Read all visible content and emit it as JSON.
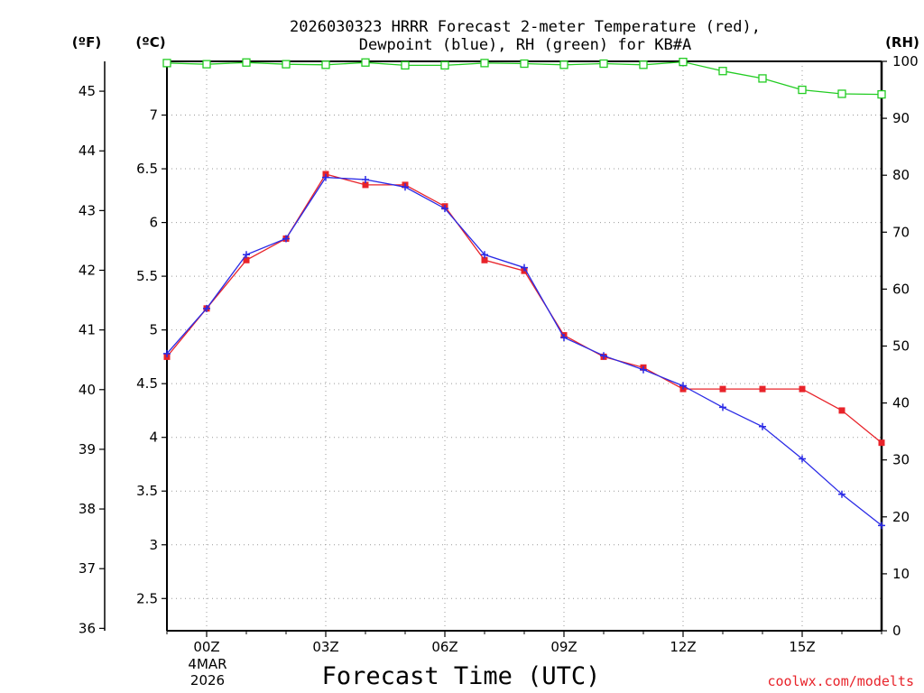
{
  "chart_data": {
    "type": "line",
    "title_line1": "2026030323 HRRR Forecast 2-meter Temperature (red),",
    "title_line2": "Dewpoint (blue), RH (green) for KB#A",
    "xlabel": "Forecast Time (UTC)",
    "credit": "coolwx.com/modelts",
    "units": {
      "left_f": "(ºF)",
      "left_c": "(ºC)",
      "right": "(RH)"
    },
    "x_range": [
      -1,
      17
    ],
    "x_ticks": [
      {
        "x": 0,
        "label": "00Z"
      },
      {
        "x": 3,
        "label": "03Z"
      },
      {
        "x": 6,
        "label": "06Z"
      },
      {
        "x": 9,
        "label": "09Z"
      },
      {
        "x": 12,
        "label": "12Z"
      },
      {
        "x": 15,
        "label": "15Z"
      }
    ],
    "date_label_1": "4MAR",
    "date_label_2": "2026",
    "c_range": [
      2.2,
      7.5
    ],
    "c_ticks": [
      "2.5",
      "3",
      "3.5",
      "4",
      "4.5",
      "5",
      "5.5",
      "6",
      "6.5",
      "7"
    ],
    "f_ticks": [
      "36",
      "37",
      "38",
      "39",
      "40",
      "41",
      "42",
      "43",
      "44",
      "45"
    ],
    "rh_range": [
      0,
      100
    ],
    "rh_ticks": [
      "0",
      "10",
      "20",
      "30",
      "40",
      "50",
      "60",
      "70",
      "80",
      "90",
      "100"
    ],
    "hours": [
      -1,
      0,
      1,
      2,
      3,
      4,
      5,
      6,
      7,
      8,
      9,
      10,
      11,
      12,
      13,
      14,
      15,
      16,
      17
    ],
    "series": [
      {
        "name": "Temperature",
        "unit": "C",
        "color": "#e8232a",
        "marker": "square-filled",
        "values": [
          4.75,
          5.2,
          5.65,
          5.85,
          6.45,
          6.35,
          6.35,
          6.15,
          5.65,
          5.55,
          4.95,
          4.75,
          4.65,
          4.45,
          4.45,
          4.45,
          4.45,
          4.25,
          3.95
        ]
      },
      {
        "name": "Dewpoint",
        "unit": "C",
        "color": "#2a2ae6",
        "marker": "plus",
        "values": [
          4.78,
          5.2,
          5.7,
          5.85,
          6.42,
          6.4,
          6.33,
          6.13,
          5.7,
          5.58,
          4.93,
          4.76,
          4.63,
          4.48,
          4.28,
          4.1,
          3.8,
          3.47,
          3.18
        ]
      },
      {
        "name": "RH",
        "unit": "%",
        "color": "#22cc22",
        "marker": "square-open",
        "values": [
          99.7,
          99.5,
          99.8,
          99.5,
          99.4,
          99.8,
          99.3,
          99.3,
          99.7,
          99.6,
          99.4,
          99.6,
          99.4,
          99.9,
          98.3,
          97.0,
          95.0,
          94.3,
          94.2
        ]
      }
    ]
  }
}
